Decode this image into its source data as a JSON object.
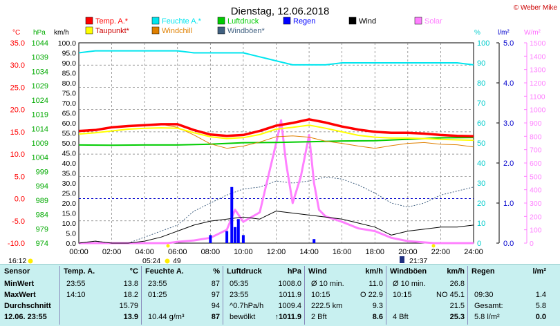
{
  "title": "Dienstag, 12.06.2018",
  "credit": "© Weber Mike",
  "colors": {
    "temp": "#ff0000",
    "dew": "#ffff00",
    "humidity": "#00e5ee",
    "windchill": "#e08000",
    "pressure": "#00cc00",
    "gust": "#406080",
    "rain": "#0000ff",
    "wind": "#000000",
    "solar": "#ff80ff"
  },
  "legend": [
    {
      "label": "Temp. A.*",
      "color": "#ff0000",
      "key": "temp"
    },
    {
      "label": "Taupunkt*",
      "color": "#ffff00",
      "key": "dew"
    },
    {
      "label": "Feuchte A.*",
      "color": "#00e5ee",
      "key": "humidity"
    },
    {
      "label": "Windchill",
      "color": "#e08000",
      "key": "windchill"
    },
    {
      "label": "Luftdruck",
      "color": "#00cc00",
      "key": "pressure"
    },
    {
      "label": "Windböen*",
      "color": "#406080",
      "key": "gust"
    },
    {
      "label": "Regen",
      "color": "#0000ff",
      "key": "rain"
    },
    {
      "label": "Wind",
      "color": "#000000",
      "key": "wind"
    },
    {
      "label": "Solar",
      "color": "#ff80ff",
      "key": "solar"
    }
  ],
  "axes_units": {
    "temp": "°C",
    "pressure": "hPa",
    "wind": "km/h",
    "humidity": "%",
    "rain": "l/m²",
    "solar": "W/m²"
  },
  "sun": {
    "sunrise_marker": "16:12",
    "sunrise": "05:24",
    "sunrise_extra": "49",
    "sunset": "21:37"
  },
  "chart_data": {
    "type": "line",
    "xlabel": "",
    "x_ticks": [
      "00:00",
      "02:00",
      "04:00",
      "06:00",
      "08:00",
      "10:00",
      "12:00",
      "14:00",
      "16:00",
      "18:00",
      "20:00",
      "22:00",
      "24:00"
    ],
    "axes": {
      "temp": {
        "range": [
          -10,
          35
        ],
        "ticks": [
          35.0,
          30.0,
          25.0,
          20.0,
          15.0,
          10.0,
          5.0,
          0.0,
          -5.0,
          -10.0
        ]
      },
      "pressure": {
        "range": [
          974,
          1044
        ],
        "ticks": [
          1044,
          1039,
          1034,
          1029,
          1024,
          1019,
          1014,
          1009,
          1004,
          999,
          994,
          989,
          984,
          979,
          974
        ]
      },
      "wind": {
        "range": [
          0,
          100
        ],
        "ticks": [
          100,
          95,
          90,
          85,
          80,
          75,
          70,
          65,
          60,
          55,
          50,
          45,
          40,
          35,
          30,
          25,
          20,
          15,
          10,
          5,
          0
        ]
      },
      "humidity": {
        "range": [
          0,
          100
        ],
        "ticks": [
          100,
          90,
          80,
          70,
          60,
          50,
          40,
          30,
          20,
          10,
          0
        ]
      },
      "rain": {
        "range": [
          0,
          5
        ],
        "ticks": [
          5.0,
          4.0,
          3.0,
          2.0,
          1.0,
          0.0
        ]
      },
      "solar": {
        "range": [
          0,
          1500
        ],
        "ticks": [
          1500,
          1400,
          1300,
          1200,
          1100,
          1000,
          900,
          800,
          700,
          600,
          500,
          400,
          300,
          200,
          100,
          0
        ]
      }
    },
    "series": [
      {
        "name": "Temp. A.*",
        "axis": "temp",
        "x": [
          0,
          1,
          2,
          3,
          4,
          5,
          6,
          7,
          8,
          9,
          10,
          11,
          12,
          13,
          14,
          15,
          16,
          17,
          18,
          19,
          20,
          21,
          22,
          23,
          24
        ],
        "values": [
          15.2,
          15.4,
          16.0,
          16.3,
          16.5,
          16.7,
          16.7,
          15.4,
          14.4,
          14.1,
          14.3,
          15.2,
          16.4,
          17.0,
          17.8,
          17.1,
          16.2,
          15.5,
          15.0,
          14.8,
          14.8,
          14.6,
          14.3,
          14.1,
          14.0
        ]
      },
      {
        "name": "Taupunkt*",
        "axis": "temp",
        "x": [
          0,
          1,
          2,
          3,
          4,
          5,
          6,
          7,
          8,
          9,
          10,
          11,
          12,
          13,
          14,
          15,
          16,
          17,
          18,
          19,
          20,
          21,
          22,
          23,
          24
        ],
        "values": [
          14.5,
          14.8,
          15.2,
          15.6,
          15.8,
          15.9,
          15.8,
          14.8,
          13.9,
          13.5,
          13.7,
          14.4,
          15.6,
          16.0,
          16.5,
          15.8,
          15.0,
          14.2,
          13.8,
          13.6,
          13.6,
          13.5,
          13.3,
          13.2,
          13.1
        ]
      },
      {
        "name": "Windchill",
        "axis": "temp",
        "x": [
          0,
          1,
          2,
          3,
          4,
          5,
          6,
          7,
          8,
          9,
          10,
          11,
          12,
          13,
          14,
          15,
          16,
          17,
          18,
          19,
          20,
          21,
          22,
          23,
          24
        ],
        "values": [
          15.2,
          15.4,
          16.0,
          16.3,
          16.5,
          16.7,
          16.0,
          14.3,
          12.3,
          11.3,
          11.8,
          12.7,
          13.9,
          14.1,
          13.8,
          12.9,
          12.4,
          11.8,
          11.3,
          11.9,
          12.4,
          12.6,
          12.2,
          12.1,
          11.6
        ]
      },
      {
        "name": "Feuchte A.*",
        "axis": "humidity",
        "x": [
          0,
          1,
          2,
          3,
          4,
          5,
          6,
          7,
          8,
          9,
          10,
          11,
          12,
          13,
          14,
          15,
          16,
          17,
          18,
          19,
          20,
          21,
          22,
          23,
          24
        ],
        "values": [
          95,
          96,
          96,
          96,
          96,
          96,
          96,
          95,
          95,
          95,
          95,
          93,
          91,
          89,
          89,
          89,
          90,
          90,
          90,
          90,
          90,
          90,
          90,
          90,
          89
        ]
      },
      {
        "name": "Luftdruck",
        "axis": "pressure",
        "x": [
          0,
          2,
          4,
          6,
          8,
          10,
          12,
          14,
          16,
          18,
          20,
          22,
          24
        ],
        "values": [
          1008.3,
          1008.2,
          1008.3,
          1008.3,
          1008.6,
          1009.1,
          1009.2,
          1009.4,
          1009.7,
          1009.8,
          1010.3,
          1010.8,
          1010.9
        ]
      },
      {
        "name": "Wind",
        "axis": "wind",
        "x": [
          0,
          1,
          2,
          3,
          4,
          5,
          6,
          7,
          8,
          9,
          10,
          11,
          12,
          13,
          14,
          15,
          16,
          17,
          18,
          19,
          20,
          21,
          22,
          23,
          24
        ],
        "values": [
          0,
          1,
          0,
          0,
          1,
          3,
          6,
          9,
          11,
          12,
          13,
          12,
          16,
          15,
          14,
          13,
          12,
          10,
          8,
          4,
          6,
          7,
          8,
          8,
          9
        ]
      },
      {
        "name": "Windböen*",
        "axis": "wind",
        "x": [
          0,
          1,
          2,
          3,
          4,
          5,
          6,
          7,
          8,
          9,
          10,
          11,
          12,
          13,
          14,
          15,
          16,
          17,
          18,
          19,
          20,
          21,
          22,
          23,
          24
        ],
        "values": [
          0,
          1,
          0,
          0,
          3,
          6,
          9,
          16,
          20,
          24,
          27,
          28,
          31,
          30,
          31,
          33,
          32,
          29,
          25,
          20,
          18,
          20,
          24,
          26,
          28
        ]
      },
      {
        "name": "Solar",
        "axis": "solar",
        "x": [
          0,
          4,
          5.4,
          6,
          7,
          8,
          9,
          9.5,
          10,
          11,
          12,
          12.3,
          12.6,
          13,
          13.5,
          14,
          14.3,
          14.6,
          15,
          16,
          17,
          18,
          19,
          20,
          21.6,
          24
        ],
        "values": [
          0,
          0,
          0,
          10,
          20,
          40,
          100,
          250,
          160,
          230,
          750,
          920,
          600,
          300,
          500,
          810,
          450,
          250,
          200,
          160,
          110,
          90,
          40,
          15,
          0,
          0
        ]
      },
      {
        "name": "Regen",
        "axis": "rain",
        "x": [
          8.0,
          9.0,
          9.3,
          9.5,
          9.7,
          10.0,
          14.3
        ],
        "values": [
          0.2,
          0.3,
          1.4,
          0.4,
          0.6,
          0.2,
          0.1
        ]
      }
    ]
  },
  "table": {
    "sensor": {
      "header": "Sensor",
      "rows": [
        "MinWert",
        "MaxWert",
        "Durchschnitt",
        "12.06. 23:55"
      ]
    },
    "temp": {
      "header": "Temp. A.",
      "unit": "°C",
      "rows": [
        [
          "23:55",
          "13.8"
        ],
        [
          "14:10",
          "18.2"
        ],
        [
          "",
          "15.79"
        ],
        [
          "",
          "13.9"
        ]
      ]
    },
    "humidity": {
      "header": "Feuchte A.",
      "unit": "%",
      "rows": [
        [
          "23:55",
          "87"
        ],
        [
          "01:25",
          "97"
        ],
        [
          "",
          "94"
        ],
        [
          "10.44 g/m³",
          "87"
        ]
      ]
    },
    "pressure": {
      "header": "Luftdruck",
      "unit": "hPa",
      "rows": [
        [
          "05:35",
          "1008.0"
        ],
        [
          "23:55",
          "1011.9"
        ],
        [
          "^0.7hPa/h",
          "1009.4"
        ],
        [
          "bewölkt",
          "1011.9"
        ]
      ],
      "trend_icon": "↑"
    },
    "wind": {
      "header": "Wind",
      "unit": "km/h",
      "rows": [
        [
          "Ø 10 min.",
          "11.0"
        ],
        [
          "10:15",
          "O 22.9"
        ],
        [
          "222.5 km",
          "9.3"
        ],
        [
          "2 Bft",
          "8.6"
        ]
      ]
    },
    "gust": {
      "header": "Windböen",
      "unit": "km/h",
      "rows": [
        [
          "Ø 10 min.",
          "26.8"
        ],
        [
          "10:15",
          "NO 45.1"
        ],
        [
          "",
          "21.5"
        ],
        [
          "4 Bft",
          "25.3"
        ]
      ]
    },
    "rain": {
      "header": "Regen",
      "unit": "l/m²",
      "rows": [
        [
          "",
          ""
        ],
        [
          "09:30",
          "1.4"
        ],
        [
          "Gesamt:",
          "5.8"
        ],
        [
          "5.8 l/m²",
          "0.0"
        ]
      ]
    }
  }
}
